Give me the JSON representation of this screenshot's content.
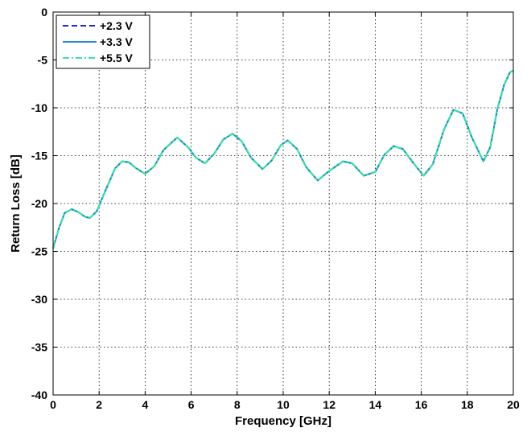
{
  "chart_data": {
    "type": "line",
    "title": "",
    "xlabel": "Frequency [GHz]",
    "ylabel": "Return Loss [dB]",
    "xlim": [
      0,
      20
    ],
    "ylim": [
      -40,
      0
    ],
    "xticks": [
      0,
      2,
      4,
      6,
      8,
      10,
      12,
      14,
      16,
      18,
      20
    ],
    "yticks": [
      0,
      -5,
      -10,
      -15,
      -20,
      -25,
      -30,
      -35,
      -40
    ],
    "grid": true,
    "legend_position": "top-left",
    "x": [
      0,
      0.25,
      0.5,
      0.8,
      1.1,
      1.4,
      1.6,
      1.9,
      2.3,
      2.7,
      3.0,
      3.3,
      3.6,
      4.0,
      4.4,
      4.8,
      5.4,
      5.9,
      6.2,
      6.6,
      7.0,
      7.4,
      7.8,
      8.2,
      8.6,
      9.1,
      9.5,
      9.9,
      10.2,
      10.6,
      11.0,
      11.5,
      12.0,
      12.6,
      13.0,
      13.5,
      14.0,
      14.4,
      14.8,
      15.2,
      15.6,
      16.1,
      16.5,
      17.0,
      17.4,
      17.8,
      18.2,
      18.7,
      19.0,
      19.3,
      19.6,
      19.85,
      20.0
    ],
    "series": [
      {
        "name": "+2.3 V",
        "color": "#1f2acf",
        "dash": "dashed",
        "values": [
          -24.7,
          -22.6,
          -21.0,
          -20.6,
          -20.9,
          -21.4,
          -21.5,
          -20.8,
          -18.5,
          -16.3,
          -15.6,
          -15.7,
          -16.3,
          -16.9,
          -16.1,
          -14.4,
          -13.1,
          -14.2,
          -15.2,
          -15.8,
          -14.8,
          -13.3,
          -12.7,
          -13.5,
          -15.2,
          -16.4,
          -15.5,
          -13.9,
          -13.4,
          -14.3,
          -16.2,
          -17.6,
          -16.6,
          -15.6,
          -15.8,
          -17.1,
          -16.7,
          -14.9,
          -14.0,
          -14.3,
          -15.6,
          -17.1,
          -15.9,
          -12.2,
          -10.2,
          -10.6,
          -13.1,
          -15.6,
          -14.1,
          -10.2,
          -7.6,
          -6.3,
          -6.1
        ]
      },
      {
        "name": "+3.3 V",
        "color": "#1b8fc4",
        "dash": "solid",
        "values": [
          -24.7,
          -22.6,
          -21.0,
          -20.6,
          -20.9,
          -21.4,
          -21.5,
          -20.8,
          -18.5,
          -16.3,
          -15.6,
          -15.7,
          -16.3,
          -16.9,
          -16.1,
          -14.4,
          -13.1,
          -14.2,
          -15.2,
          -15.8,
          -14.8,
          -13.3,
          -12.7,
          -13.5,
          -15.2,
          -16.4,
          -15.5,
          -13.9,
          -13.4,
          -14.3,
          -16.2,
          -17.6,
          -16.6,
          -15.6,
          -15.8,
          -17.1,
          -16.7,
          -14.9,
          -14.0,
          -14.3,
          -15.6,
          -17.1,
          -15.9,
          -12.2,
          -10.2,
          -10.6,
          -13.1,
          -15.6,
          -14.1,
          -10.2,
          -7.6,
          -6.3,
          -6.1
        ]
      },
      {
        "name": "+5.5 V",
        "color": "#33e6a0",
        "dash": "dashdot",
        "values": [
          -24.7,
          -22.6,
          -21.0,
          -20.6,
          -20.9,
          -21.4,
          -21.5,
          -20.8,
          -18.5,
          -16.3,
          -15.6,
          -15.7,
          -16.3,
          -16.9,
          -16.1,
          -14.4,
          -13.1,
          -14.2,
          -15.2,
          -15.8,
          -14.8,
          -13.3,
          -12.7,
          -13.5,
          -15.2,
          -16.4,
          -15.5,
          -13.9,
          -13.4,
          -14.3,
          -16.2,
          -17.6,
          -16.6,
          -15.6,
          -15.8,
          -17.1,
          -16.7,
          -14.9,
          -14.0,
          -14.3,
          -15.6,
          -17.1,
          -15.9,
          -12.2,
          -10.2,
          -10.6,
          -13.1,
          -15.6,
          -14.1,
          -10.2,
          -7.6,
          -6.3,
          -6.1
        ]
      }
    ]
  }
}
